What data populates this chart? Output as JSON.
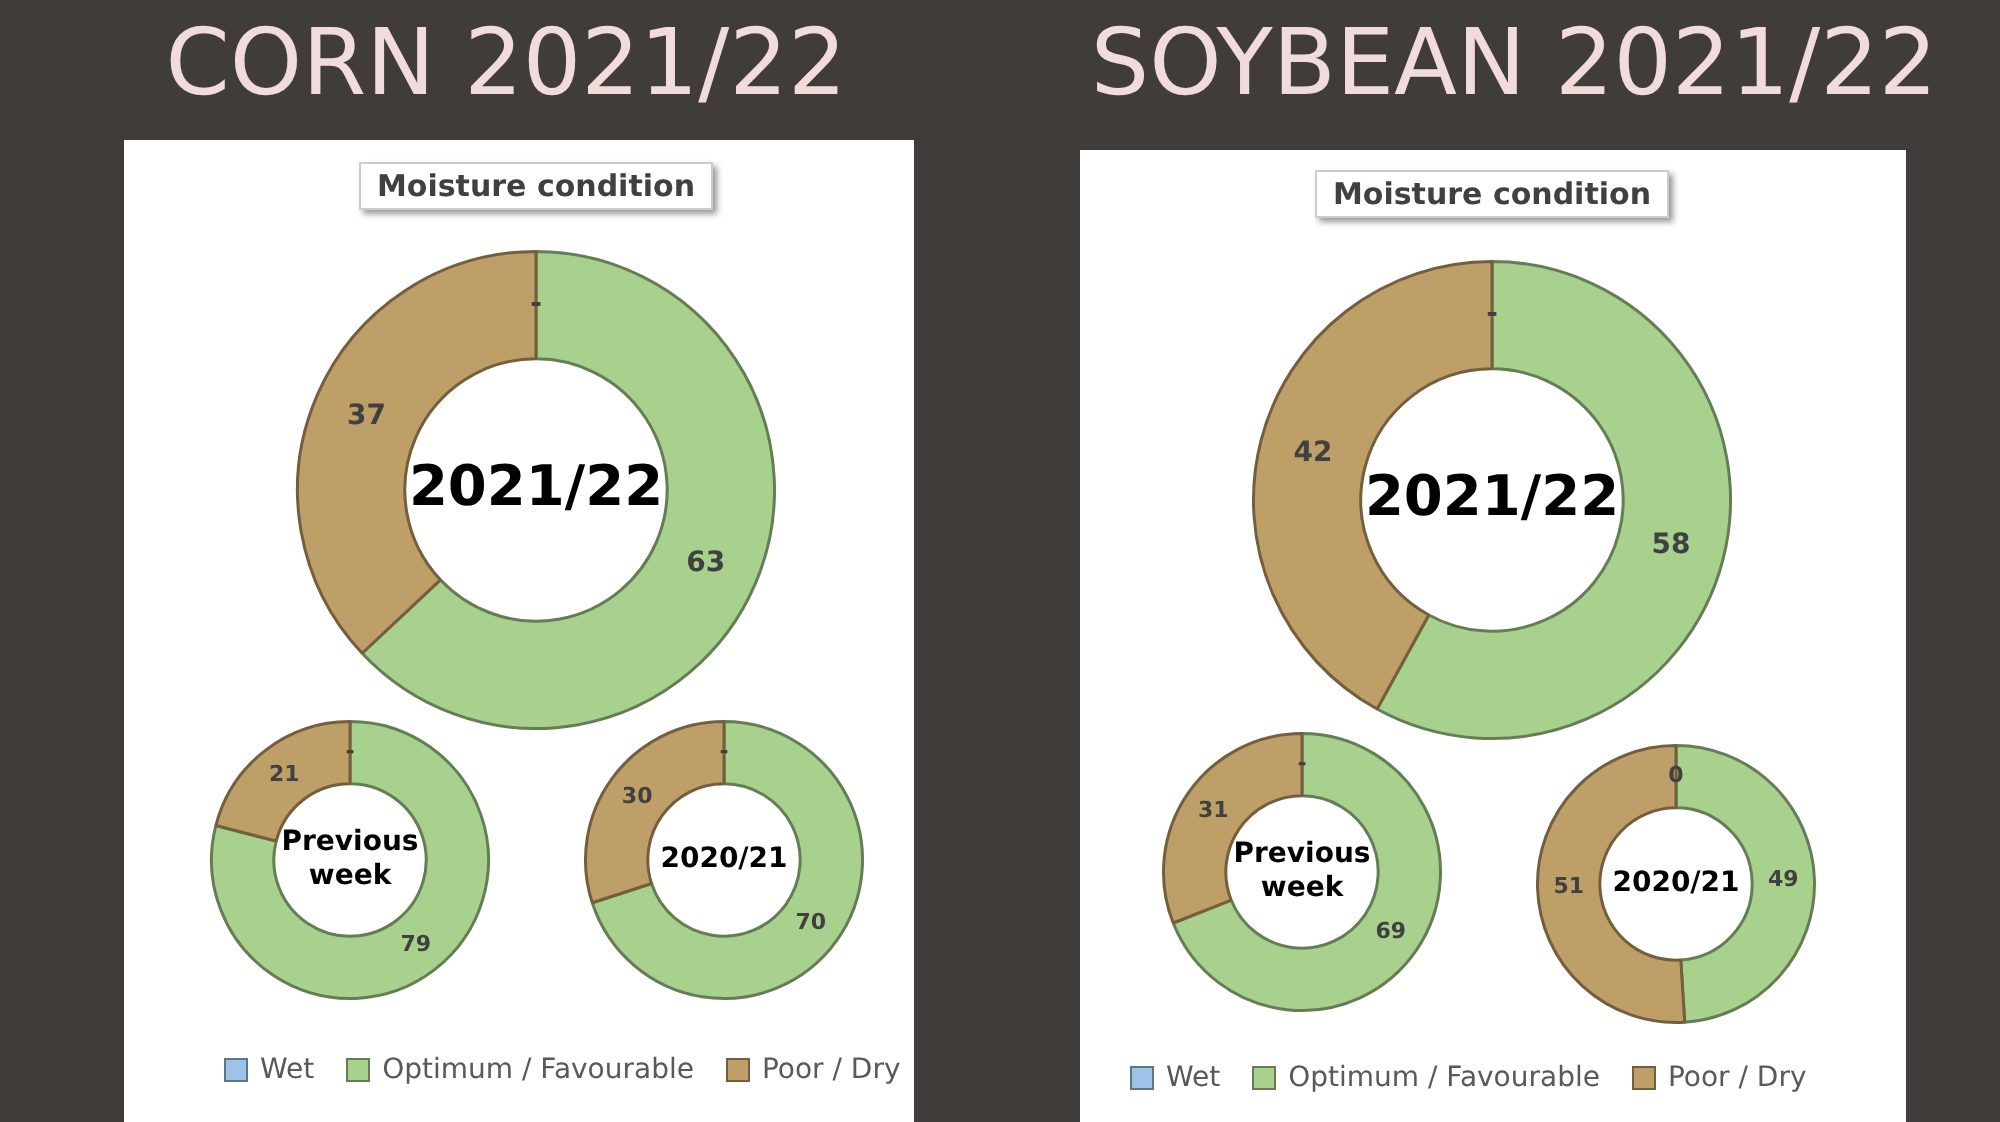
{
  "chart_data": [
    {
      "type": "donut",
      "title": "CORN 2021/22",
      "subtitle": "Moisture condition",
      "annotations": [
        "2021/22"
      ],
      "legend": "bottom",
      "categories": [
        "Wet",
        "Optimum / Favourable",
        "Poor / Dry"
      ],
      "values": [
        0,
        63,
        37
      ],
      "colors": [
        "#9dc3e6",
        "#a9d18e",
        "#bf9f68"
      ],
      "value_labels": [
        "-",
        "63",
        "37"
      ]
    },
    {
      "type": "donut",
      "annotations": [
        "Previous week"
      ],
      "categories": [
        null,
        null,
        null
      ],
      "values": [
        0,
        79,
        21
      ],
      "colors": [
        "#9dc3e6",
        "#a9d18e",
        "#bf9f68"
      ],
      "value_labels": [
        "-",
        "79",
        "21"
      ]
    },
    {
      "type": "donut",
      "annotations": [
        "2020/21"
      ],
      "categories": [
        null,
        null,
        null
      ],
      "values": [
        0,
        70,
        30
      ],
      "colors": [
        "#9dc3e6",
        "#a9d18e",
        "#bf9f68"
      ],
      "value_labels": [
        "-",
        "70",
        "30"
      ]
    },
    {
      "type": "donut",
      "title": "SOYBEAN 2021/22",
      "subtitle": "Moisture condition",
      "annotations": [
        "2021/22"
      ],
      "legend": "bottom",
      "categories": [
        "Wet",
        "Optimum / Favourable",
        "Poor / Dry"
      ],
      "values": [
        0,
        58,
        42
      ],
      "colors": [
        "#9dc3e6",
        "#a9d18e",
        "#bf9f68"
      ],
      "value_labels": [
        "-",
        "58",
        "42"
      ]
    },
    {
      "type": "donut",
      "annotations": [
        "Previous week"
      ],
      "categories": [
        null,
        null,
        null
      ],
      "values": [
        0,
        69,
        31
      ],
      "colors": [
        "#9dc3e6",
        "#a9d18e",
        "#bf9f68"
      ],
      "value_labels": [
        "-",
        "69",
        "31"
      ]
    },
    {
      "type": "donut",
      "annotations": [
        "2020/21"
      ],
      "categories": [
        null,
        null,
        null
      ],
      "values": [
        0,
        49,
        51
      ],
      "colors": [
        "#9dc3e6",
        "#a9d18e",
        "#bf9f68"
      ],
      "value_labels": [
        "0",
        "49",
        "51"
      ]
    }
  ]
}
